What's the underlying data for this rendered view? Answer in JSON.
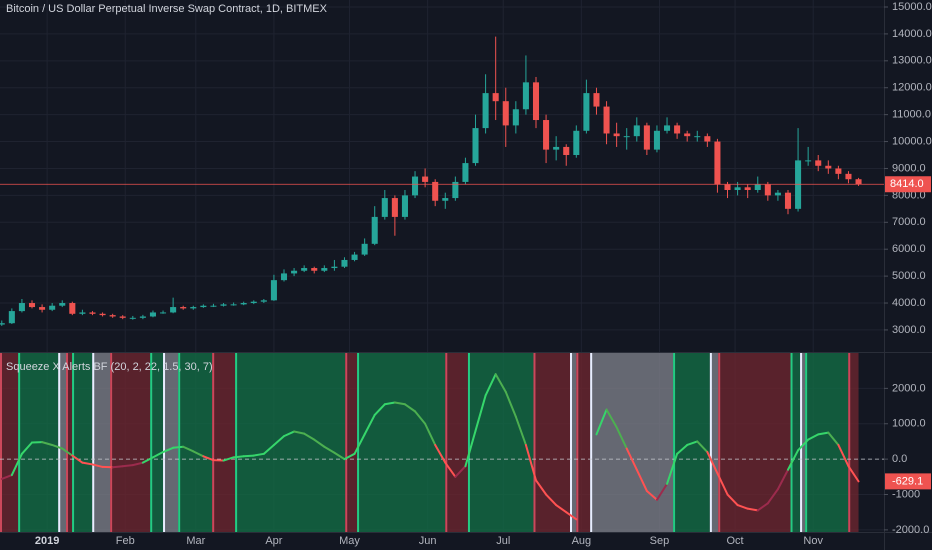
{
  "chart_data": [
    {
      "type": "candlestick",
      "title": "Bitcoin / US Dollar Perpetual Inverse Swap Contract, 1D, BITMEX",
      "x": [
        -18,
        -14,
        -10,
        -6,
        -2,
        2,
        6,
        10,
        14,
        18,
        22,
        26,
        30,
        34,
        38,
        42,
        46,
        50,
        54,
        58,
        62,
        66,
        70,
        74,
        78,
        82,
        86,
        90,
        94,
        98,
        102,
        106,
        110,
        114,
        118,
        122,
        126,
        130,
        134,
        138,
        142,
        146,
        150,
        154,
        158,
        162,
        166,
        170,
        174,
        178,
        182,
        186,
        190,
        194,
        198,
        202,
        206,
        210,
        214,
        218,
        222,
        226,
        230,
        234,
        238,
        242,
        246,
        250,
        254,
        258,
        262,
        266,
        270,
        274,
        278,
        282,
        286,
        290,
        294,
        298,
        302,
        306,
        310,
        314,
        318,
        322
      ],
      "open": [
        3200,
        3250,
        3700,
        4000,
        3850,
        3750,
        3900,
        4000,
        3600,
        3650,
        3600,
        3550,
        3500,
        3450,
        3450,
        3500,
        3650,
        3650,
        3850,
        3800,
        3850,
        3900,
        3900,
        3950,
        3950,
        4000,
        4050,
        4100,
        4850,
        5100,
        5200,
        5300,
        5200,
        5300,
        5350,
        5600,
        5800,
        6200,
        7200,
        7900,
        7200,
        8000,
        8700,
        8500,
        7800,
        7900,
        8500,
        9200,
        10500,
        11800,
        11500,
        10600,
        11200,
        12200,
        10800,
        9700,
        9800,
        9500,
        10400,
        11800,
        11300,
        10300,
        10200,
        10200,
        10600,
        9700,
        10400,
        10600,
        10300,
        10200,
        10200,
        10000,
        8400,
        8200,
        8300,
        8200,
        8400,
        8000,
        8100,
        7500,
        9300,
        9300,
        9100,
        9000,
        8800,
        8600
      ],
      "high": [
        3350,
        3800,
        4150,
        4100,
        3950,
        4000,
        4100,
        4050,
        3750,
        3700,
        3650,
        3600,
        3550,
        3520,
        3560,
        3720,
        3720,
        4200,
        3900,
        3900,
        3950,
        3970,
        4000,
        4020,
        4050,
        4100,
        4150,
        5050,
        5250,
        5300,
        5400,
        5350,
        5400,
        5600,
        5700,
        5900,
        6400,
        7600,
        8200,
        8000,
        8200,
        8900,
        9000,
        8600,
        8100,
        8700,
        9400,
        11000,
        12500,
        13900,
        12000,
        11500,
        13200,
        12400,
        11000,
        10200,
        9900,
        10600,
        12300,
        12000,
        11500,
        10700,
        10500,
        10900,
        10700,
        10600,
        10900,
        10700,
        10400,
        10400,
        10300,
        10100,
        8500,
        8500,
        8400,
        8700,
        8500,
        8200,
        8200,
        10500,
        9800,
        9500,
        9300,
        9100,
        8900,
        8650
      ],
      "low": [
        3150,
        3220,
        3650,
        3800,
        3650,
        3700,
        3850,
        3550,
        3550,
        3550,
        3500,
        3450,
        3400,
        3380,
        3400,
        3470,
        3600,
        3620,
        3750,
        3750,
        3820,
        3850,
        3870,
        3900,
        3920,
        3960,
        4000,
        4080,
        4800,
        5000,
        5150,
        5100,
        5150,
        5200,
        5300,
        5550,
        5750,
        6150,
        7100,
        6500,
        7100,
        7900,
        8300,
        7600,
        7500,
        7800,
        8400,
        9100,
        10300,
        10800,
        9800,
        10300,
        11000,
        10500,
        9200,
        9300,
        9100,
        9400,
        10300,
        11000,
        9900,
        9800,
        9700,
        10000,
        9500,
        9600,
        10300,
        10100,
        10000,
        10000,
        9800,
        8100,
        7900,
        8000,
        7900,
        8100,
        7800,
        7800,
        7300,
        7400,
        9100,
        8900,
        8800,
        8600,
        8450,
        8350
      ],
      "close": [
        3250,
        3700,
        4000,
        3850,
        3750,
        3900,
        4000,
        3600,
        3650,
        3600,
        3550,
        3500,
        3450,
        3450,
        3500,
        3650,
        3650,
        3850,
        3800,
        3850,
        3900,
        3900,
        3950,
        3950,
        4000,
        4050,
        4100,
        4850,
        5100,
        5200,
        5300,
        5200,
        5300,
        5350,
        5600,
        5800,
        6200,
        7200,
        7900,
        7200,
        8000,
        8700,
        8500,
        7800,
        7900,
        8500,
        9200,
        10500,
        11800,
        11500,
        10600,
        11200,
        12200,
        10800,
        9700,
        9800,
        9500,
        10400,
        11800,
        11300,
        10300,
        10200,
        10200,
        10600,
        9700,
        10400,
        10600,
        10300,
        10200,
        10200,
        10000,
        8400,
        8200,
        8300,
        8200,
        8400,
        8000,
        8100,
        7500,
        9300,
        9300,
        9100,
        9000,
        8800,
        8600,
        8414
      ],
      "up_color": "#26a69a",
      "down_color": "#ef5350",
      "xlim": [
        -18.7,
        332.1
      ],
      "xticks": [
        {
          "value": 0,
          "label": "2019"
        },
        {
          "value": 31,
          "label": "Feb"
        },
        {
          "value": 59,
          "label": "Mar"
        },
        {
          "value": 90,
          "label": "Apr"
        },
        {
          "value": 120,
          "label": "May"
        },
        {
          "value": 151,
          "label": "Jun"
        },
        {
          "value": 181,
          "label": "Jul"
        },
        {
          "value": 212,
          "label": "Aug"
        },
        {
          "value": 243,
          "label": "Sep"
        },
        {
          "value": 273,
          "label": "Oct"
        },
        {
          "value": 304,
          "label": "Nov"
        }
      ],
      "ylim": [
        2180,
        15260
      ],
      "yticks": [
        {
          "value": 3000,
          "label": "3000.0"
        },
        {
          "value": 4000,
          "label": "4000.0"
        },
        {
          "value": 5000,
          "label": "5000.0"
        },
        {
          "value": 6000,
          "label": "6000.0"
        },
        {
          "value": 7000,
          "label": "7000.0"
        },
        {
          "value": 8000,
          "label": "8000.0"
        },
        {
          "value": 9000,
          "label": "9000.0"
        },
        {
          "value": 10000,
          "label": "10000.0"
        },
        {
          "value": 11000,
          "label": "11000.0"
        },
        {
          "value": 12000,
          "label": "12000.0"
        },
        {
          "value": 13000,
          "label": "13000.0"
        },
        {
          "value": 14000,
          "label": "14000.0"
        },
        {
          "value": 15000,
          "label": "15000.0"
        }
      ],
      "grid": true,
      "last_price": {
        "value": 8414,
        "label": "8414.0"
      }
    },
    {
      "type": "indicator",
      "title": "Squeeze X Alerts BF (20, 2, 22, 1.5, 30, 7)",
      "values": [
        -560,
        -450,
        150,
        470,
        480,
        400,
        300,
        100,
        -100,
        -150,
        -220,
        -230,
        -200,
        -170,
        -100,
        50,
        200,
        320,
        350,
        220,
        80,
        -30,
        -40,
        50,
        80,
        100,
        150,
        400,
        650,
        780,
        720,
        550,
        350,
        180,
        0,
        150,
        700,
        1250,
        1550,
        1600,
        1550,
        1350,
        1000,
        400,
        -100,
        -500,
        -200,
        800,
        1800,
        2400,
        1900,
        1200,
        400,
        -600,
        -1000,
        -1300,
        -1500,
        -1700,
        null,
        700,
        1400,
        900,
        300,
        -300,
        -900,
        -1150,
        -700,
        150,
        400,
        500,
        200,
        -400,
        -1000,
        -1300,
        -1400,
        -1450,
        -1250,
        -850,
        -300,
        250,
        550,
        700,
        750,
        400,
        -200,
        -629.1
      ],
      "zones": {
        "start": [
          -18.7,
          -11.5,
          4.4,
          7.5,
          9.9,
          17.9,
          25,
          40.9,
          46,
          52,
          65.5,
          74.6,
          118.3,
          123,
          158,
          167,
          193,
          207.5,
          210,
          215.5,
          248.4,
          263,
          266.3,
          295,
          298.8,
          300.8,
          317.9
        ],
        "end": [
          -11.5,
          4.4,
          7.5,
          9.9,
          17.9,
          25,
          40.9,
          46,
          52,
          65.5,
          74.6,
          118.3,
          123,
          158,
          167,
          193,
          207.5,
          210,
          215.5,
          248.4,
          263,
          266.3,
          295,
          298.8,
          300.8,
          317.9,
          322
        ],
        "color": [
          "#6b2630",
          "#136b45",
          "#7a7d87",
          "#6b2630",
          "#136b45",
          "#7a7d87",
          "#6b2630",
          "#136b45",
          "#7a7d87",
          "#136b45",
          "#6b2630",
          "#136b45",
          "#6b2630",
          "#136b45",
          "#6b2630",
          "#136b45",
          "#6b2630",
          "#7a7d87",
          "#6b2630",
          "#7a7d87",
          "#136b45",
          "#7a7d87",
          "#6b2630",
          "#136b45",
          "#7a7d87",
          "#136b45",
          "#6b2630"
        ]
      },
      "ylim": [
        -2060,
        3000
      ],
      "yticks": [
        {
          "value": 2000,
          "label": "2000.0"
        },
        {
          "value": 1000,
          "label": "1000.0"
        },
        {
          "value": 0,
          "label": "0.0"
        },
        -1000,
        {
          "value": -2000,
          "label": "-2000.0"
        }
      ],
      "hline": 0,
      "last_value": {
        "value": -629.1,
        "label": "-629.1"
      }
    }
  ]
}
